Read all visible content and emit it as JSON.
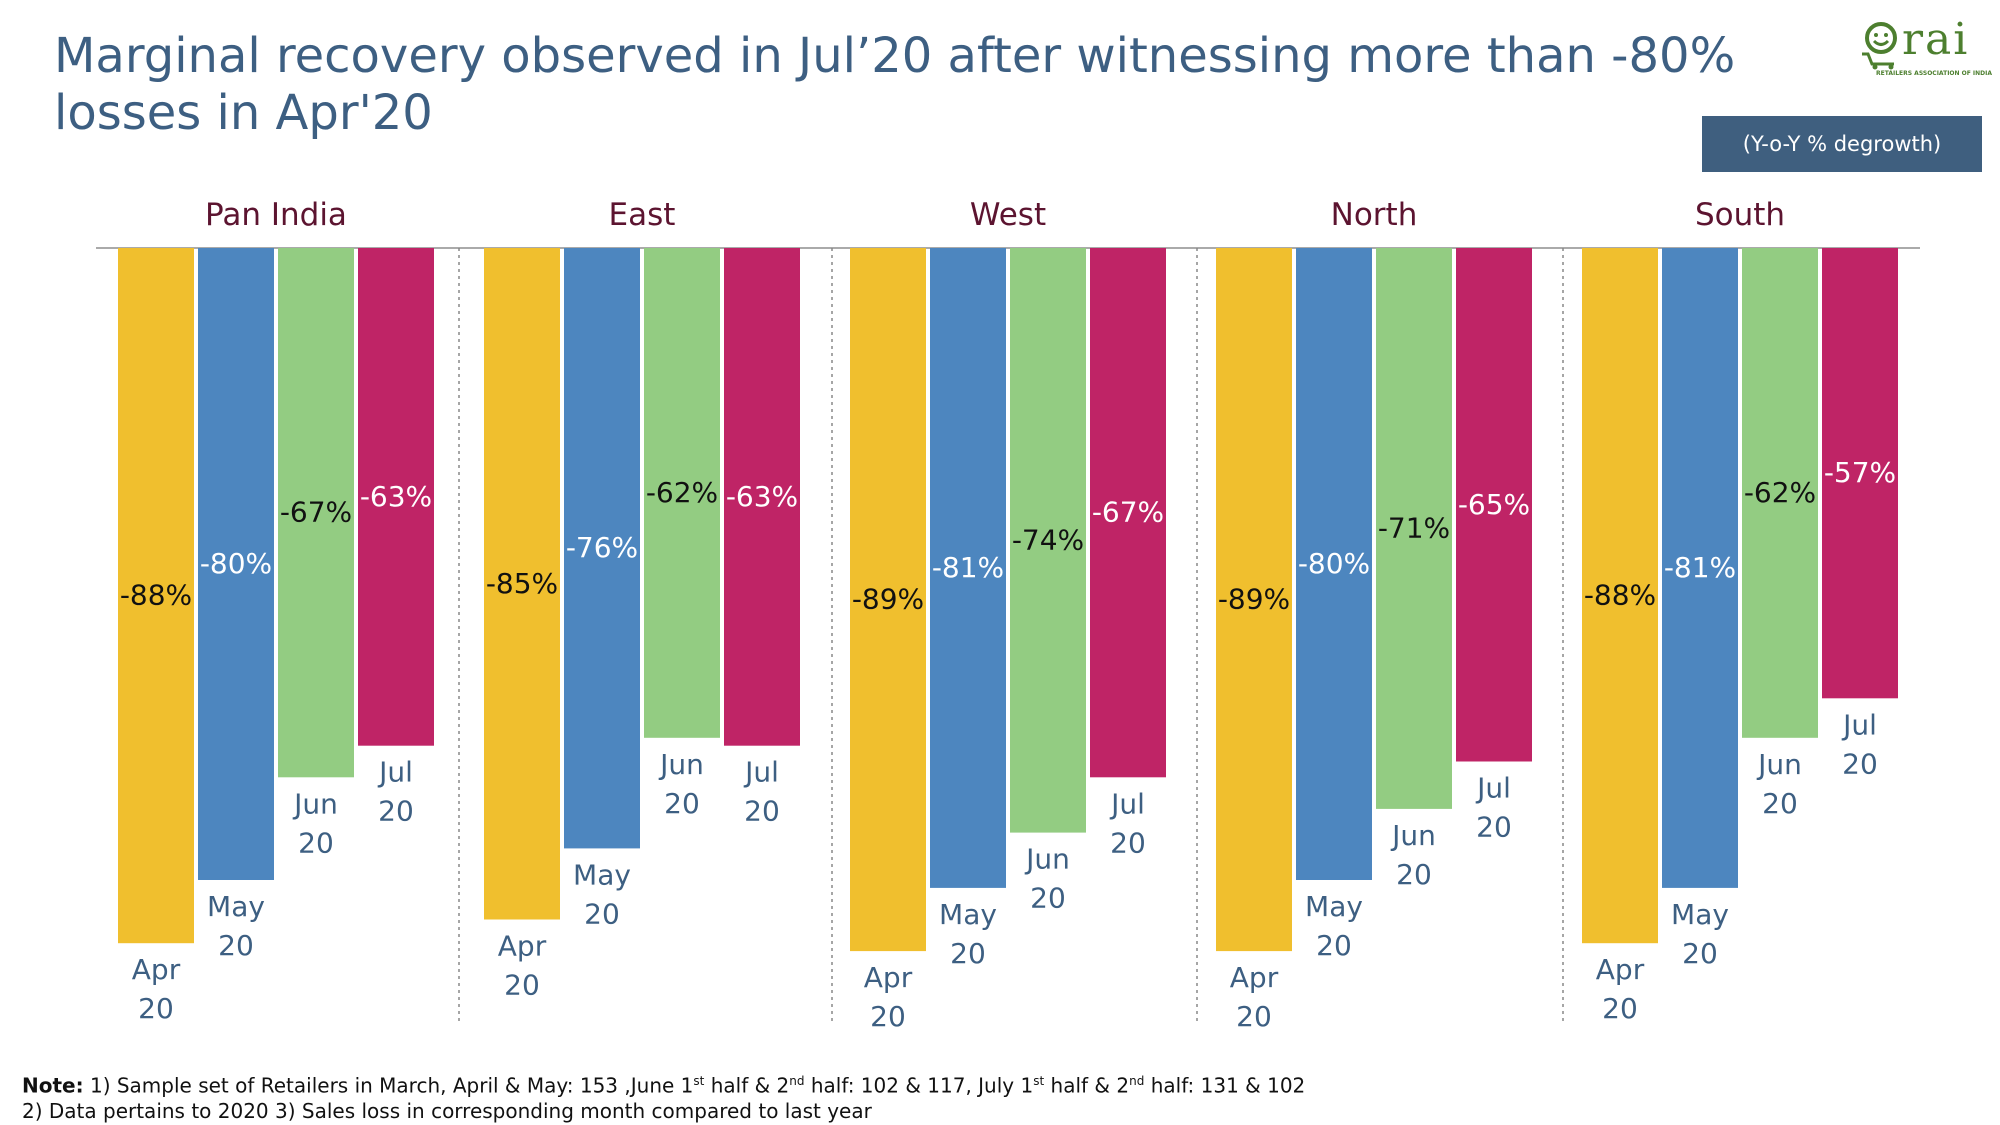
{
  "title": "Marginal recovery observed in Jul’20 after witnessing more than -80% losses in Apr'20",
  "logo": {
    "text": "rai",
    "tagline": "RETAILERS ASSOCIATION OF INDIA",
    "color": "#4d7f2f"
  },
  "unit_label": "(Y-o-Y % degrowth)",
  "note": {
    "label": "Note:",
    "line1_a": " 1) Sample set of Retailers in March, April & May: 153 ,June 1",
    "sup_st_1": "st",
    "line1_b": " half & 2",
    "sup_nd_1": "nd",
    "line1_c": " half: 102 & 117, July 1",
    "sup_st_2": "st",
    "line1_d": " half & 2",
    "sup_nd_2": "nd",
    "line1_e": " half: 131 & 102",
    "line2": "2) Data pertains to 2020 3) Sales loss in corresponding month compared to last year"
  },
  "chart_data": {
    "type": "bar",
    "title": "",
    "categories": [
      "Apr 20",
      "May 20",
      "Jun 20",
      "Jul 20"
    ],
    "ylim": [
      -100,
      0
    ],
    "colors": [
      "#f0bf2e",
      "#4d86bf",
      "#93cc82",
      "#bf2466"
    ],
    "groups": [
      {
        "name": "Pan India",
        "values": [
          -88,
          -80,
          -67,
          -63
        ],
        "labels": [
          "-88%",
          "-80%",
          "-67%",
          "-63%"
        ]
      },
      {
        "name": "East",
        "values": [
          -85,
          -76,
          -62,
          -63
        ],
        "labels": [
          "-85%",
          "-76%",
          "-62%",
          "-63%"
        ]
      },
      {
        "name": "West",
        "values": [
          -89,
          -81,
          -74,
          -67
        ],
        "labels": [
          "-89%",
          "-81%",
          "-74%",
          "-67%"
        ]
      },
      {
        "name": "North",
        "values": [
          -89,
          -80,
          -71,
          -65
        ],
        "labels": [
          "-89%",
          "-80%",
          "-71%",
          "-65%"
        ]
      },
      {
        "name": "South",
        "values": [
          -88,
          -81,
          -62,
          -57
        ],
        "labels": [
          "-88%",
          "-81%",
          "-62%",
          "-57%"
        ]
      }
    ]
  }
}
